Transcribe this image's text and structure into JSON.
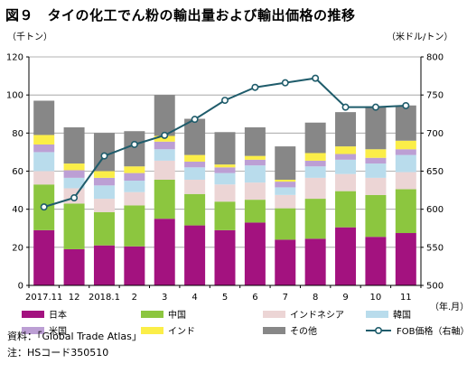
{
  "title": "図９　タイの化工でん粉の輸出量および輸出価格の推移",
  "notes": {
    "source": "資料：「Global Trade Atlas」",
    "note": "注：HSコード350510"
  },
  "chart_data": {
    "type": "bar",
    "stacked": true,
    "left_unit": "（千トン）",
    "right_unit": "（米ドル/トン）",
    "x_unit": "（年.月）",
    "categories": [
      "2017.11",
      "12",
      "2018.1",
      "2",
      "3",
      "4",
      "5",
      "6",
      "7",
      "8",
      "9",
      "10",
      "11"
    ],
    "ylim": [
      0,
      120
    ],
    "yticks": [
      0,
      20,
      40,
      60,
      80,
      100,
      120
    ],
    "y2lim": [
      500,
      800
    ],
    "y2ticks": [
      500,
      550,
      600,
      650,
      700,
      750,
      800
    ],
    "series": [
      {
        "name": "日本",
        "color": "#a3127f",
        "values": [
          29,
          19,
          21,
          20.5,
          35,
          31.5,
          29,
          33,
          24,
          24.5,
          30.5,
          25.5,
          27.5
        ]
      },
      {
        "name": "中国",
        "color": "#8cc63f",
        "values": [
          24,
          24,
          17.5,
          21.5,
          20.5,
          16.5,
          15,
          12,
          16.5,
          21,
          19,
          22,
          23
        ]
      },
      {
        "name": "インドネシア",
        "color": "#ecd5d5",
        "values": [
          7,
          8,
          7,
          7,
          10,
          7.5,
          9,
          9,
          7,
          11,
          9,
          9,
          9
        ]
      },
      {
        "name": "韓国",
        "color": "#b9dcec",
        "values": [
          10,
          5.5,
          7,
          6,
          6,
          6.5,
          6,
          9,
          4,
          6,
          7.5,
          7.5,
          9
        ]
      },
      {
        "name": "米国",
        "color": "#bc9fd4",
        "values": [
          4,
          4,
          4,
          4,
          4,
          3,
          3,
          3,
          3,
          3,
          3,
          3,
          3
        ]
      },
      {
        "name": "インド",
        "color": "#fbee48",
        "values": [
          5,
          3.5,
          3.5,
          3.5,
          3,
          3.5,
          1.5,
          2,
          1,
          4,
          4,
          4.5,
          4.5
        ]
      },
      {
        "name": "その他",
        "color": "#878787",
        "values": [
          18,
          19,
          20,
          18.5,
          21.5,
          19,
          17,
          15,
          17.5,
          16,
          18,
          22.5,
          18.5
        ]
      }
    ],
    "line": {
      "name": "FOB価格（右軸）",
      "color": "#1f5c6b",
      "values": [
        603,
        615,
        670,
        685,
        697,
        718,
        743,
        760,
        766,
        772,
        734,
        734,
        736
      ]
    }
  }
}
